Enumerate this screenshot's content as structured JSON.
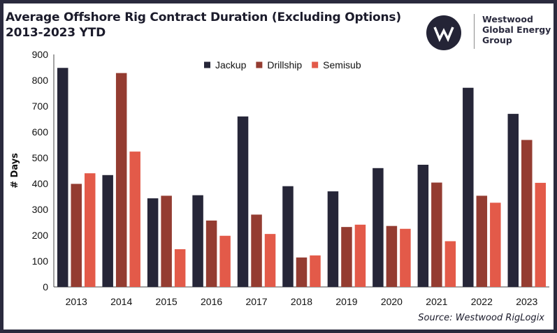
{
  "title_line1": "Average Offshore Rig Contract Duration (Excluding Options)",
  "title_line2": "2013-2023 YTD",
  "brand": {
    "line1": "Westwood",
    "line2": "Global Energy",
    "line3": "Group"
  },
  "source": "Source: Westwood RigLogix",
  "chart_data": {
    "type": "bar",
    "title": "Average Offshore Rig Contract Duration (Excluding Options) 2013-2023 YTD",
    "xlabel": "",
    "ylabel": "# Days",
    "ylim": [
      0,
      900
    ],
    "yticks": [
      0,
      100,
      200,
      300,
      400,
      500,
      600,
      700,
      800,
      900
    ],
    "grid": false,
    "legend_position": "top-center",
    "categories": [
      "2013",
      "2014",
      "2015",
      "2016",
      "2017",
      "2018",
      "2019",
      "2020",
      "2021",
      "2022",
      "2023"
    ],
    "series": [
      {
        "name": "Jackup",
        "color": "#262638",
        "values": [
          848,
          433,
          343,
          355,
          660,
          390,
          370,
          460,
          473,
          771,
          670
        ]
      },
      {
        "name": "Drillship",
        "color": "#943c31",
        "values": [
          399,
          828,
          353,
          257,
          280,
          114,
          232,
          236,
          404,
          353,
          569
        ]
      },
      {
        "name": "Semisub",
        "color": "#e35a49",
        "values": [
          440,
          524,
          146,
          198,
          205,
          122,
          241,
          225,
          177,
          326,
          403
        ]
      }
    ]
  }
}
